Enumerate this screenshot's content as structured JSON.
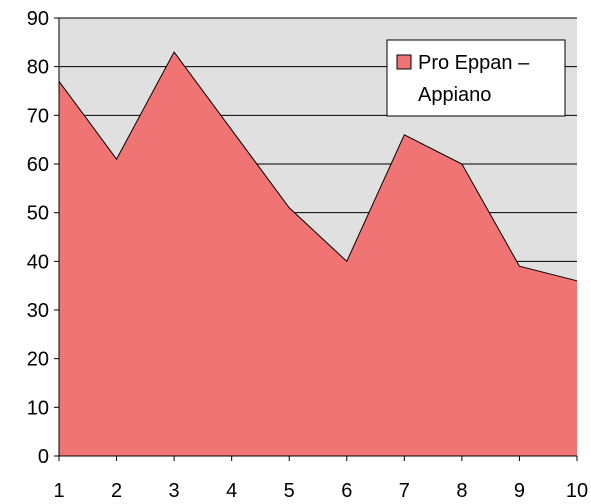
{
  "chart_data": {
    "type": "area",
    "x": [
      1,
      2,
      3,
      4,
      5,
      6,
      7,
      8,
      9,
      10
    ],
    "series": [
      {
        "name": "Pro Eppan – Appiano",
        "values": [
          77,
          61,
          83,
          67,
          51,
          40,
          66,
          60,
          39,
          36
        ]
      }
    ],
    "xlim": [
      1,
      10
    ],
    "ylim": [
      0,
      90
    ],
    "y_ticks": [
      0,
      10,
      20,
      30,
      40,
      50,
      60,
      70,
      80,
      90
    ],
    "x_ticks": [
      1,
      2,
      3,
      4,
      5,
      6,
      7,
      8,
      9,
      10
    ],
    "grid": "horizontal",
    "legend_position": "top-right",
    "legend_lines": [
      "Pro Eppan –",
      "Appiano"
    ],
    "title": "",
    "xlabel": "",
    "ylabel": "",
    "colors": {
      "area_fill": "#f07474",
      "area_stroke": "#000000",
      "plot_background": "#e0e0e0",
      "gridline": "#000000",
      "axis": "#000000"
    }
  }
}
